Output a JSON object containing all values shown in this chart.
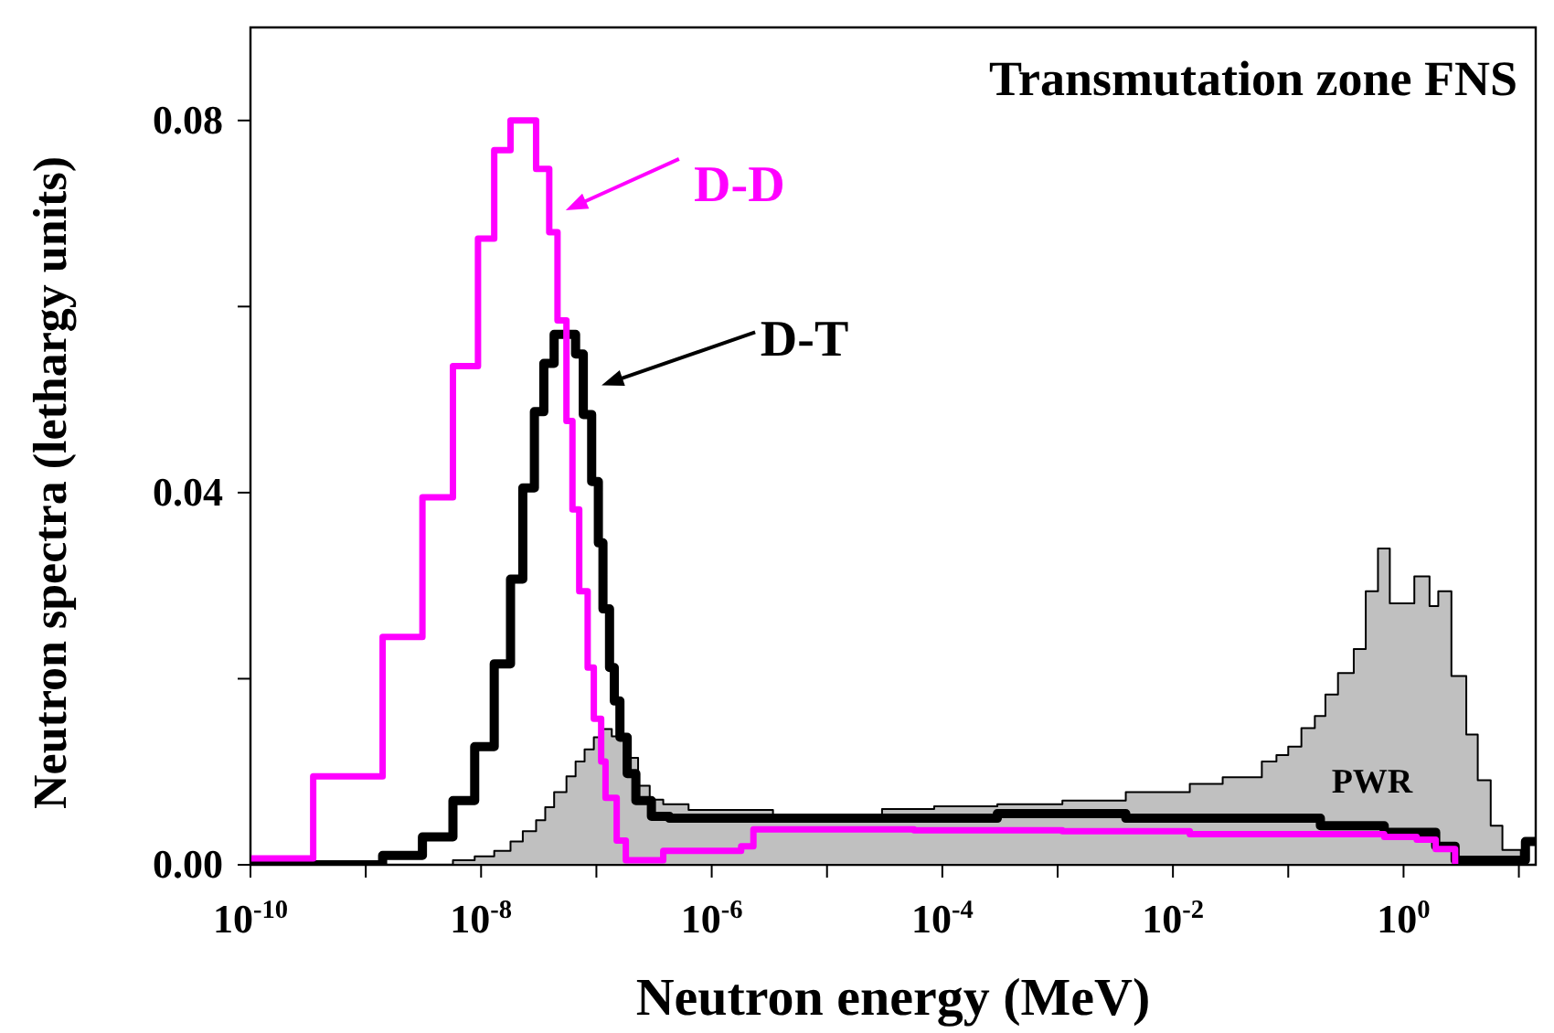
{
  "chart_data": {
    "type": "step",
    "title": "Transmutation zone FNS",
    "xlabel": "Neutron energy (MeV)",
    "ylabel": "Neutron spectra (lethargy units)",
    "log": "x",
    "legend": "top",
    "xlim": [
      1e-10,
      14
    ],
    "ylim": [
      0,
      0.09
    ],
    "xticks": [
      {
        "value": 1e-10,
        "label": "10$^{-10}$"
      },
      {
        "value": 1e-09,
        "label": null
      },
      {
        "value": 1e-08,
        "label": "10$^{-8}$"
      },
      {
        "value": 1e-07,
        "label": null
      },
      {
        "value": 1e-06,
        "label": "10$^{-6}$"
      },
      {
        "value": 1e-05,
        "label": null
      },
      {
        "value": 0.0001,
        "label": "10$^{-4}$"
      },
      {
        "value": 0.001,
        "label": null
      },
      {
        "value": 0.01,
        "label": "10$^{-2}$"
      },
      {
        "value": 0.1,
        "label": null
      },
      {
        "value": 1,
        "label": "10$^{0}$"
      },
      {
        "value": 10,
        "label": null
      }
    ],
    "yticks": [
      {
        "value": 0,
        "label": "0.00"
      },
      {
        "value": 0.02,
        "label": null
      },
      {
        "value": 0.04,
        "label": "0.04"
      },
      {
        "value": 0.06,
        "label": null
      },
      {
        "value": 0.08,
        "label": "0.08"
      }
    ],
    "series": [
      {
        "name": "D-D",
        "type": "step",
        "color": "#ff00ff",
        "x": [
          1e-10,
          3.5e-10,
          1.4e-09,
          3.1e-09,
          5.7e-09,
          9.4e-09,
          1.3e-08,
          1.8e-08,
          3e-08,
          3.9e-08,
          4.6e-08,
          5.5e-08,
          6.2e-08,
          7.1e-08,
          8.4e-08,
          9.5e-08,
          1.1e-07,
          1.2e-07,
          1.5e-07,
          1.8e-07,
          3.8e-07,
          1.8e-06,
          2.3e-06,
          5.7e-05,
          0.0011,
          0.014,
          0.68,
          1.3,
          1.9,
          2.8
        ],
        "values": [
          0.0007,
          0.0095,
          0.0245,
          0.0395,
          0.0536,
          0.0673,
          0.0768,
          0.08,
          0.0748,
          0.068,
          0.0585,
          0.0477,
          0.0382,
          0.0294,
          0.0212,
          0.0157,
          0.0111,
          0.0072,
          0.0026,
          0.0005,
          0.0015,
          0.002,
          0.0038,
          0.0037,
          0.0036,
          0.0033,
          0.003,
          0.0027,
          0.0017,
          0
        ]
      },
      {
        "name": "D-T",
        "type": "step",
        "color": "#000000",
        "x": [
          1e-10,
          1.4e-09,
          3.1e-09,
          5.7e-09,
          8.8e-09,
          1.3e-08,
          1.8e-08,
          2.3e-08,
          2.9e-08,
          3.5e-08,
          4.3e-08,
          6.6e-08,
          7.7e-08,
          9.1e-08,
          1.04e-07,
          1.14e-07,
          1.3e-07,
          1.43e-07,
          1.6e-07,
          1.85e-07,
          2.2e-07,
          3e-07,
          4.3e-07,
          0.0003,
          0.0039,
          0.19,
          0.68,
          1.9,
          2.8,
          11.4,
          14
        ],
        "values": [
          0,
          0.001,
          0.003,
          0.0069,
          0.0127,
          0.0216,
          0.0307,
          0.0405,
          0.0487,
          0.0539,
          0.057,
          0.0549,
          0.0484,
          0.0412,
          0.0346,
          0.0275,
          0.0212,
          0.0176,
          0.0137,
          0.0098,
          0.0069,
          0.0052,
          0.005,
          0.0055,
          0.005,
          0.0042,
          0.0035,
          0.002,
          0.0005,
          0.0025,
          0.0025
        ]
      },
      {
        "name": "PWR",
        "type": "area",
        "color": "#c0c0c0",
        "x": [
          4e-09,
          5.7e-09,
          8.8e-09,
          1.3e-08,
          1.8e-08,
          2.3e-08,
          3e-08,
          3.6e-08,
          4.3e-08,
          5.5e-08,
          6.6e-08,
          7.9e-08,
          9.5e-08,
          1.14e-07,
          1.36e-07,
          1.76e-07,
          2.3e-07,
          2.9e-07,
          3.8e-07,
          6.3e-07,
          3.4e-06,
          3e-05,
          8.5e-05,
          0.0003,
          0.0011,
          0.0039,
          0.014,
          0.027,
          0.059,
          0.079,
          0.1,
          0.13,
          0.17,
          0.21,
          0.27,
          0.37,
          0.47,
          0.6,
          0.76,
          1.24,
          1.68,
          2.0,
          2.6,
          3.5,
          4.4,
          5.7,
          7.2,
          10.4
        ],
        "values": [
          0,
          0.0005,
          0.0009,
          0.0015,
          0.0025,
          0.0036,
          0.0048,
          0.0062,
          0.0078,
          0.0095,
          0.0111,
          0.0124,
          0.0137,
          0.0146,
          0.0138,
          0.0115,
          0.0085,
          0.007,
          0.0065,
          0.0059,
          0.0053,
          0.006,
          0.0063,
          0.0065,
          0.0069,
          0.0078,
          0.0087,
          0.0094,
          0.0111,
          0.0118,
          0.0127,
          0.0147,
          0.016,
          0.0183,
          0.0206,
          0.0232,
          0.0294,
          0.034,
          0.0281,
          0.031,
          0.0278,
          0.0294,
          0.0203,
          0.014,
          0.0091,
          0.0042,
          0.0016,
          0
        ]
      }
    ]
  }
}
